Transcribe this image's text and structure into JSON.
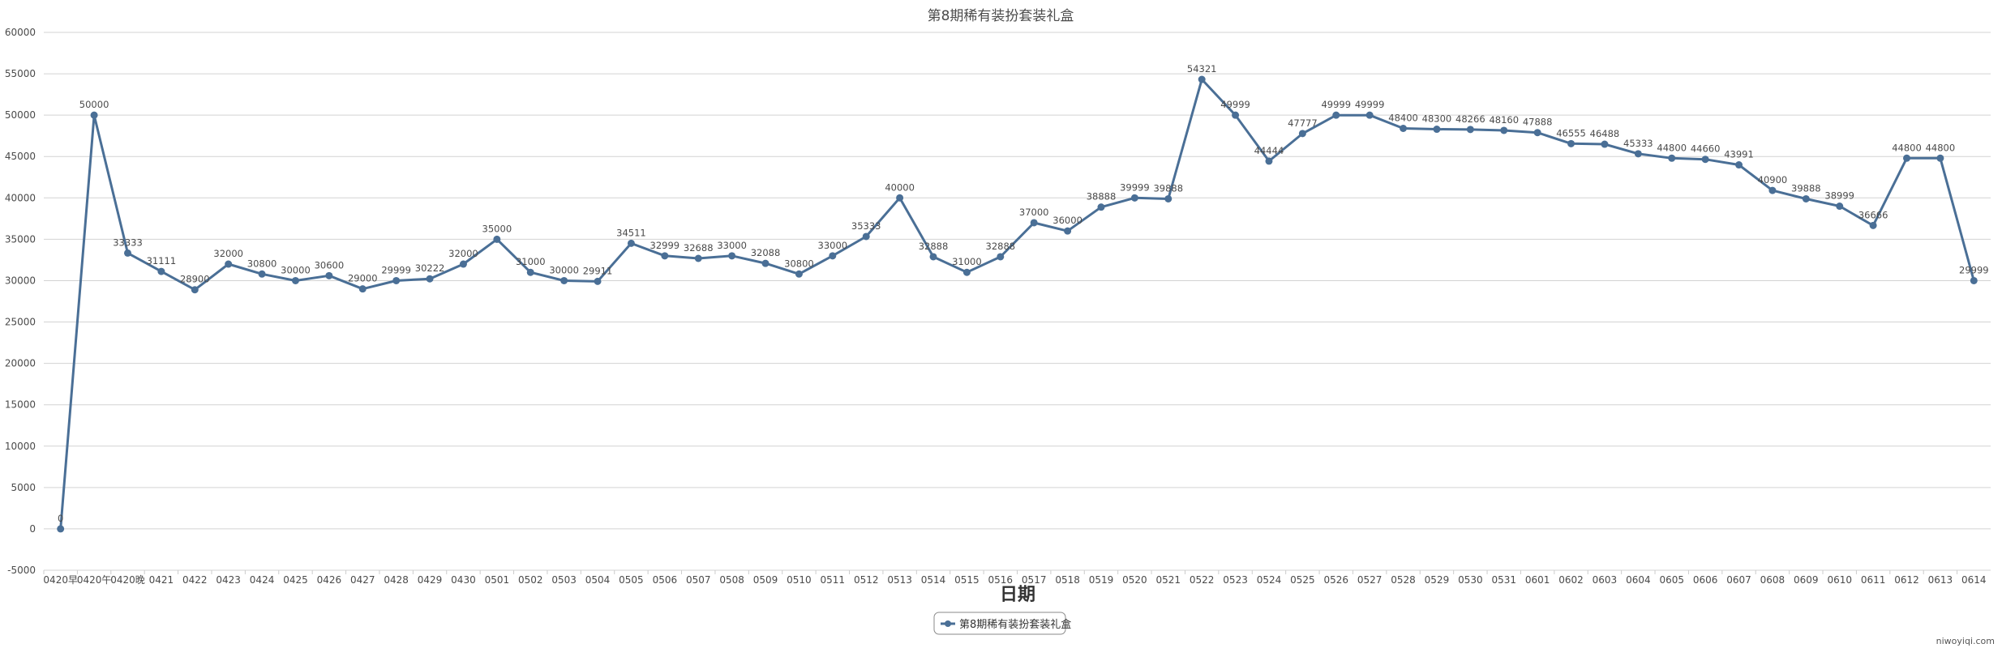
{
  "chart_data": {
    "type": "line",
    "title": "第8期稀有装扮套装礼盒",
    "xlabel": "日期",
    "ylabel": "",
    "ylim": [
      -5000,
      60000
    ],
    "yticks": [
      -5000,
      0,
      5000,
      10000,
      15000,
      20000,
      25000,
      30000,
      35000,
      40000,
      45000,
      50000,
      55000,
      60000
    ],
    "grid": true,
    "legend_position": "bottom-center",
    "categories": [
      "0420早",
      "0420午",
      "0420晚",
      "0421",
      "0422",
      "0423",
      "0424",
      "0425",
      "0426",
      "0427",
      "0428",
      "0429",
      "0430",
      "0501",
      "0502",
      "0503",
      "0504",
      "0505",
      "0506",
      "0507",
      "0508",
      "0509",
      "0510",
      "0511",
      "0512",
      "0513",
      "0514",
      "0515",
      "0516",
      "0517",
      "0518",
      "0519",
      "0520",
      "0521",
      "0522",
      "0523",
      "0524",
      "0525",
      "0526",
      "0527",
      "0528",
      "0529",
      "0530",
      "0531",
      "0601",
      "0602",
      "0603",
      "0604",
      "0605",
      "0606",
      "0607",
      "0608",
      "0609",
      "0610",
      "0611",
      "0612",
      "0613",
      "0614"
    ],
    "series": [
      {
        "name": "第8期稀有装扮套装礼盒",
        "color": "#4a6f96",
        "values": [
          0,
          50000,
          33333,
          31111,
          28900,
          32000,
          30800,
          30000,
          30600,
          29000,
          29999,
          30222,
          32000,
          35000,
          31000,
          30000,
          29911,
          34511,
          32999,
          32688,
          33000,
          32088,
          30800,
          33000,
          35333,
          40000,
          32888,
          31000,
          32888,
          37000,
          36000,
          38888,
          39999,
          39888,
          54321,
          49999,
          44444,
          47777,
          49999,
          49999,
          48400,
          48300,
          48266,
          48160,
          47888,
          46555,
          46488,
          45333,
          44800,
          44660,
          43991,
          40900,
          39888,
          38999,
          36666,
          44800,
          44800,
          29999
        ]
      }
    ]
  },
  "watermark": "niwoyiqi.com"
}
